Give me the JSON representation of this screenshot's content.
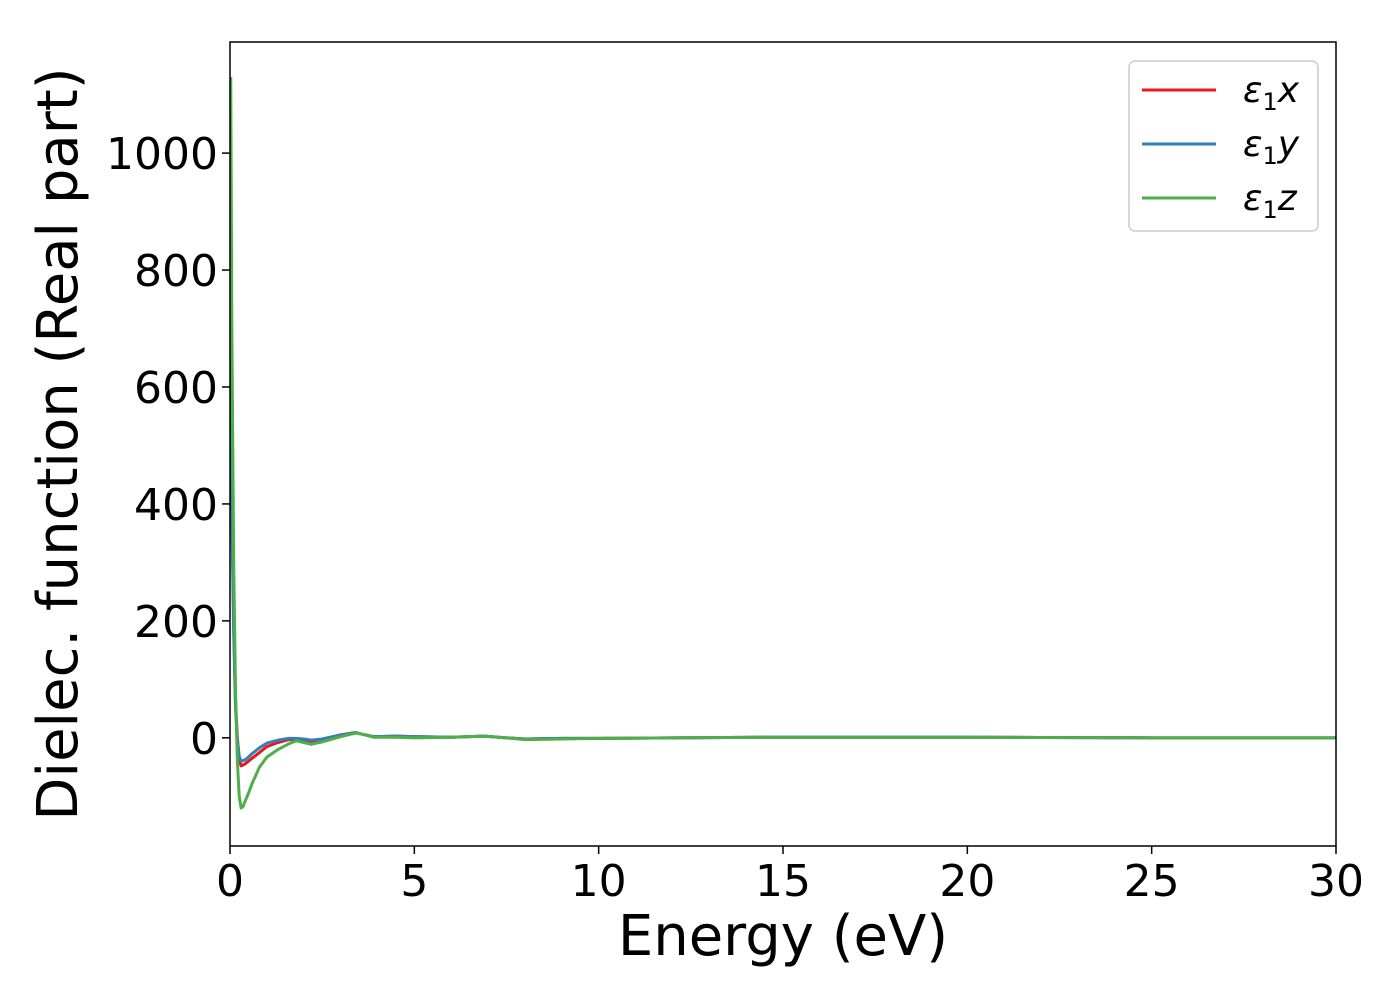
{
  "chart_data": {
    "type": "line",
    "title": "",
    "xlabel": "Energy (eV)",
    "ylabel": "Dielec. function (Real part)",
    "xlim": [
      0,
      30
    ],
    "ylim": [
      -185,
      1190
    ],
    "xticks": [
      0,
      5,
      10,
      15,
      20,
      25,
      30
    ],
    "yticks": [
      0,
      200,
      400,
      600,
      800,
      1000
    ],
    "grid": false,
    "legend_position": "top-right",
    "series": [
      {
        "name": "ε1x",
        "legend_symbol": "ε",
        "legend_sub": "1",
        "legend_var": "x",
        "color": "#e41a1c",
        "x": [
          0.02,
          0.05,
          0.1,
          0.15,
          0.2,
          0.25,
          0.3,
          0.4,
          0.5,
          0.6,
          0.8,
          1.0,
          1.3,
          1.6,
          1.8,
          2.0,
          2.2,
          2.5,
          3.0,
          3.4,
          3.6,
          3.9,
          4.5,
          5.0,
          6.0,
          6.9,
          7.5,
          8.0,
          9.0,
          10.0,
          12.0,
          14.5,
          17.0,
          20.0,
          22.0,
          25.0,
          27.0,
          30.0
        ],
        "values": [
          650,
          420,
          200,
          60,
          0,
          -35,
          -48,
          -45,
          -40,
          -35,
          -25,
          -15,
          -8,
          -3,
          -2,
          -3,
          -6,
          -3,
          5,
          9,
          6,
          2,
          3,
          2,
          1,
          3,
          0,
          -2,
          -1,
          -1,
          0,
          1,
          1,
          1,
          0.5,
          0,
          0,
          0
        ]
      },
      {
        "name": "ε1y",
        "legend_symbol": "ε",
        "legend_sub": "1",
        "legend_var": "y",
        "color": "#377eb8",
        "x": [
          0.02,
          0.05,
          0.1,
          0.15,
          0.2,
          0.25,
          0.3,
          0.4,
          0.5,
          0.6,
          0.8,
          1.0,
          1.3,
          1.6,
          1.8,
          2.0,
          2.2,
          2.5,
          3.0,
          3.4,
          3.6,
          3.9,
          4.5,
          5.0,
          6.0,
          6.9,
          7.5,
          8.0,
          9.0,
          10.0,
          12.0,
          14.5,
          17.0,
          20.0,
          22.0,
          25.0,
          27.0,
          30.0
        ],
        "values": [
          580,
          380,
          180,
          50,
          -5,
          -32,
          -40,
          -38,
          -33,
          -27,
          -17,
          -9,
          -4,
          -1,
          -1,
          -2,
          -4,
          -2,
          5,
          9,
          6,
          2,
          3,
          2,
          1,
          3,
          0,
          -2,
          -1,
          -1,
          0,
          1,
          1,
          1,
          0.5,
          0,
          0,
          0
        ]
      },
      {
        "name": "ε1z",
        "legend_symbol": "ε",
        "legend_sub": "1",
        "legend_var": "z",
        "color": "#4daf4a",
        "x": [
          0.02,
          0.05,
          0.1,
          0.15,
          0.2,
          0.25,
          0.3,
          0.35,
          0.4,
          0.5,
          0.6,
          0.8,
          1.0,
          1.3,
          1.6,
          1.8,
          2.0,
          2.2,
          2.5,
          3.0,
          3.4,
          3.6,
          3.9,
          4.5,
          5.0,
          6.0,
          6.9,
          7.5,
          8.0,
          9.0,
          10.0,
          12.0,
          14.5,
          17.0,
          20.0,
          22.0,
          25.0,
          27.0,
          30.0
        ],
        "values": [
          1130,
          700,
          300,
          80,
          -40,
          -100,
          -120,
          -118,
          -110,
          -95,
          -78,
          -50,
          -33,
          -20,
          -10,
          -5,
          -8,
          -11,
          -7,
          2,
          8,
          6,
          1,
          1,
          0,
          1,
          3,
          0,
          -3,
          -2,
          -1,
          0,
          1,
          1,
          1,
          0.5,
          0,
          0,
          0
        ]
      }
    ]
  }
}
